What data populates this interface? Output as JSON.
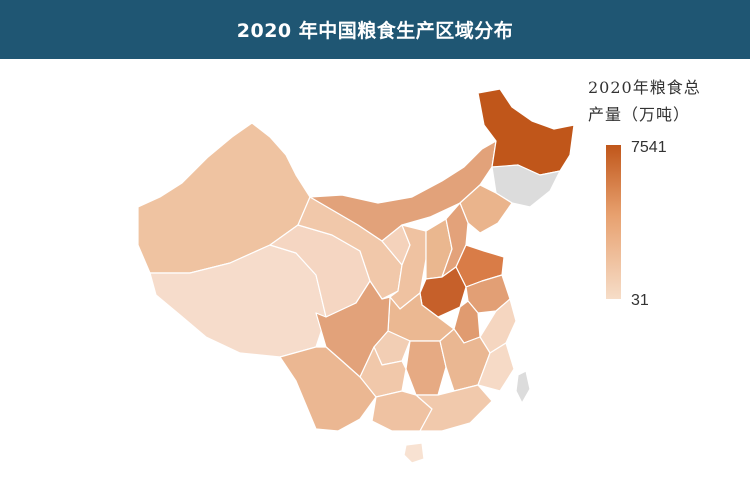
{
  "header": {
    "title": "2020 年中国粮食生产区域分布"
  },
  "legend": {
    "title_line1": "2020年粮食总",
    "title_line2": "产量（万吨）",
    "max_label": "7541",
    "min_label": "31",
    "color_max": "#c0561a",
    "color_min": "#f6ddc8",
    "no_data_color": "#dcdcdc"
  },
  "colors": {
    "header_bg": "#1f5673",
    "border": "#ffffff"
  }
}
